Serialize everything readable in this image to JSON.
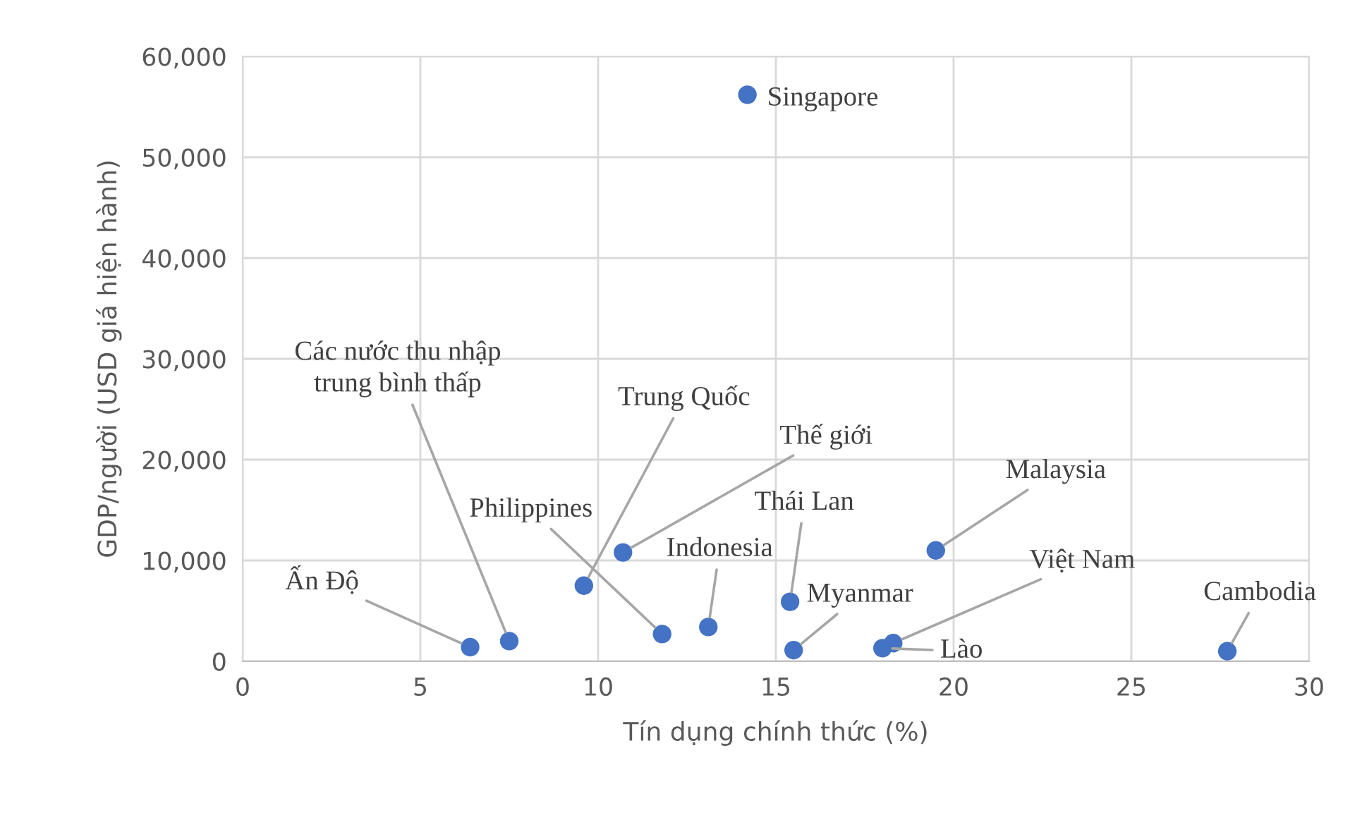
{
  "chart_data": {
    "type": "scatter",
    "xlabel": "Tín dụng chính thức (%)",
    "ylabel": "GDP/người (USD giá hiện hành)",
    "series": [
      {
        "color": "#4472c4",
        "x": [
          14.2,
          6.4,
          7.5,
          9.6,
          10.7,
          11.8,
          13.1,
          15.4,
          15.5,
          18.0,
          18.3,
          19.5,
          27.7
        ],
        "values": [
          56200,
          1400,
          2000,
          7500,
          10800,
          2700,
          3400,
          5900,
          1100,
          1300,
          1800,
          11000,
          1000
        ]
      }
    ],
    "annotations": [
      {
        "text": "Singapore",
        "x": 14.2,
        "y": 56200
      },
      {
        "text": "Ấn Độ",
        "x": 6.4,
        "y": 1400
      },
      {
        "text": "Các nước thu nhập\ntrung bình thấp",
        "x": 7.5,
        "y": 2000
      },
      {
        "text": "Trung Quốc",
        "x": 9.6,
        "y": 7500
      },
      {
        "text": "Thế giới",
        "x": 10.7,
        "y": 10800
      },
      {
        "text": "Philippines",
        "x": 11.8,
        "y": 2700
      },
      {
        "text": "Indonesia",
        "x": 13.1,
        "y": 3400
      },
      {
        "text": "Thái Lan",
        "x": 15.4,
        "y": 5900
      },
      {
        "text": "Myanmar",
        "x": 15.5,
        "y": 1100
      },
      {
        "text": "Lào",
        "x": 18.0,
        "y": 1300
      },
      {
        "text": "Việt Nam",
        "x": 18.3,
        "y": 1800
      },
      {
        "text": "Malaysia",
        "x": 19.5,
        "y": 11000
      },
      {
        "text": "Cambodia",
        "x": 27.7,
        "y": 1000
      }
    ],
    "xlim": [
      0,
      30
    ],
    "xticks": [
      0,
      5,
      10,
      15,
      20,
      25,
      30
    ],
    "ylim": [
      0,
      60000
    ],
    "yticks": [
      0,
      {
        "value": 10000,
        "label": "10,000"
      },
      {
        "value": 20000,
        "label": "20,000"
      },
      {
        "value": 30000,
        "label": "30,000"
      },
      {
        "value": 40000,
        "label": "40,000"
      },
      {
        "value": 50000,
        "label": "50,000"
      },
      {
        "value": 60000,
        "label": "60,000"
      }
    ],
    "grid": true,
    "marker": "circle"
  }
}
